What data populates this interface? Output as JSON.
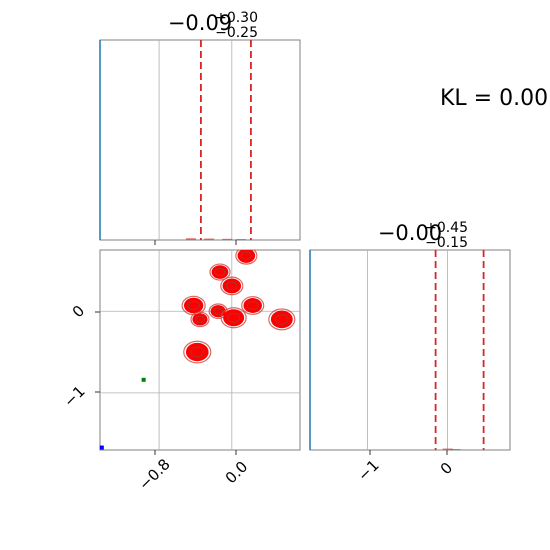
{
  "annotation": "KL = 0.00",
  "chart_data": [
    {
      "panel": "marginal_1",
      "type": "area",
      "title_value": "−0.09",
      "title_plus": "+0.30",
      "title_minus": "−0.25",
      "xlim": [
        -1.45,
        0.75
      ],
      "quantiles": [
        -0.34,
        0.21
      ],
      "gridlines_x": [
        -0.8,
        0.0
      ],
      "grid": true,
      "histogram": {
        "x": [
          -0.45,
          -0.25,
          -0.05,
          0.1
        ],
        "counts": [
          0.012,
          0.01,
          0.008,
          0.006
        ]
      }
    },
    {
      "panel": "marginal_2",
      "type": "area",
      "title_value": "−0.00",
      "title_plus": "+0.45",
      "title_minus": "−0.15",
      "xlim": [
        -1.72,
        0.78
      ],
      "quantiles": [
        -0.15,
        0.45
      ],
      "gridlines_x": [
        -1,
        0
      ],
      "grid": true,
      "xticks": [
        "−1",
        "0"
      ],
      "histogram": {
        "x": [
          0.0,
          0.1
        ],
        "counts": [
          0.01,
          0.006
        ]
      }
    },
    {
      "panel": "joint",
      "type": "scatter",
      "xlim": [
        -1.45,
        0.75
      ],
      "ylim": [
        -1.7,
        0.75
      ],
      "xticks": [
        "−0.8",
        "0.0"
      ],
      "yticks": [
        "0",
        "−1"
      ],
      "grid": true,
      "blobs": [
        {
          "x": -0.13,
          "y": 0.48,
          "size": 1.0
        },
        {
          "x": 0.16,
          "y": 0.68,
          "size": 1.05
        },
        {
          "x": 0.0,
          "y": 0.31,
          "size": 1.1
        },
        {
          "x": -0.42,
          "y": 0.07,
          "size": 1.15
        },
        {
          "x": -0.35,
          "y": -0.1,
          "size": 0.9
        },
        {
          "x": -0.15,
          "y": 0.0,
          "size": 0.9
        },
        {
          "x": 0.02,
          "y": -0.08,
          "size": 1.25
        },
        {
          "x": 0.23,
          "y": 0.07,
          "size": 1.1
        },
        {
          "x": 0.55,
          "y": -0.1,
          "size": 1.3
        },
        {
          "x": -0.38,
          "y": -0.5,
          "size": 1.35
        }
      ],
      "extra_points": [
        {
          "x": -0.97,
          "y": -0.84,
          "color": "#008000"
        },
        {
          "x": -1.43,
          "y": -1.67,
          "color": "#0000ff"
        }
      ],
      "colors": {
        "blob_fill": "#ff0000",
        "blob_edge": "#cc4444",
        "quantile_line": "#d62728",
        "hist_line": "#1f77b4"
      }
    }
  ]
}
